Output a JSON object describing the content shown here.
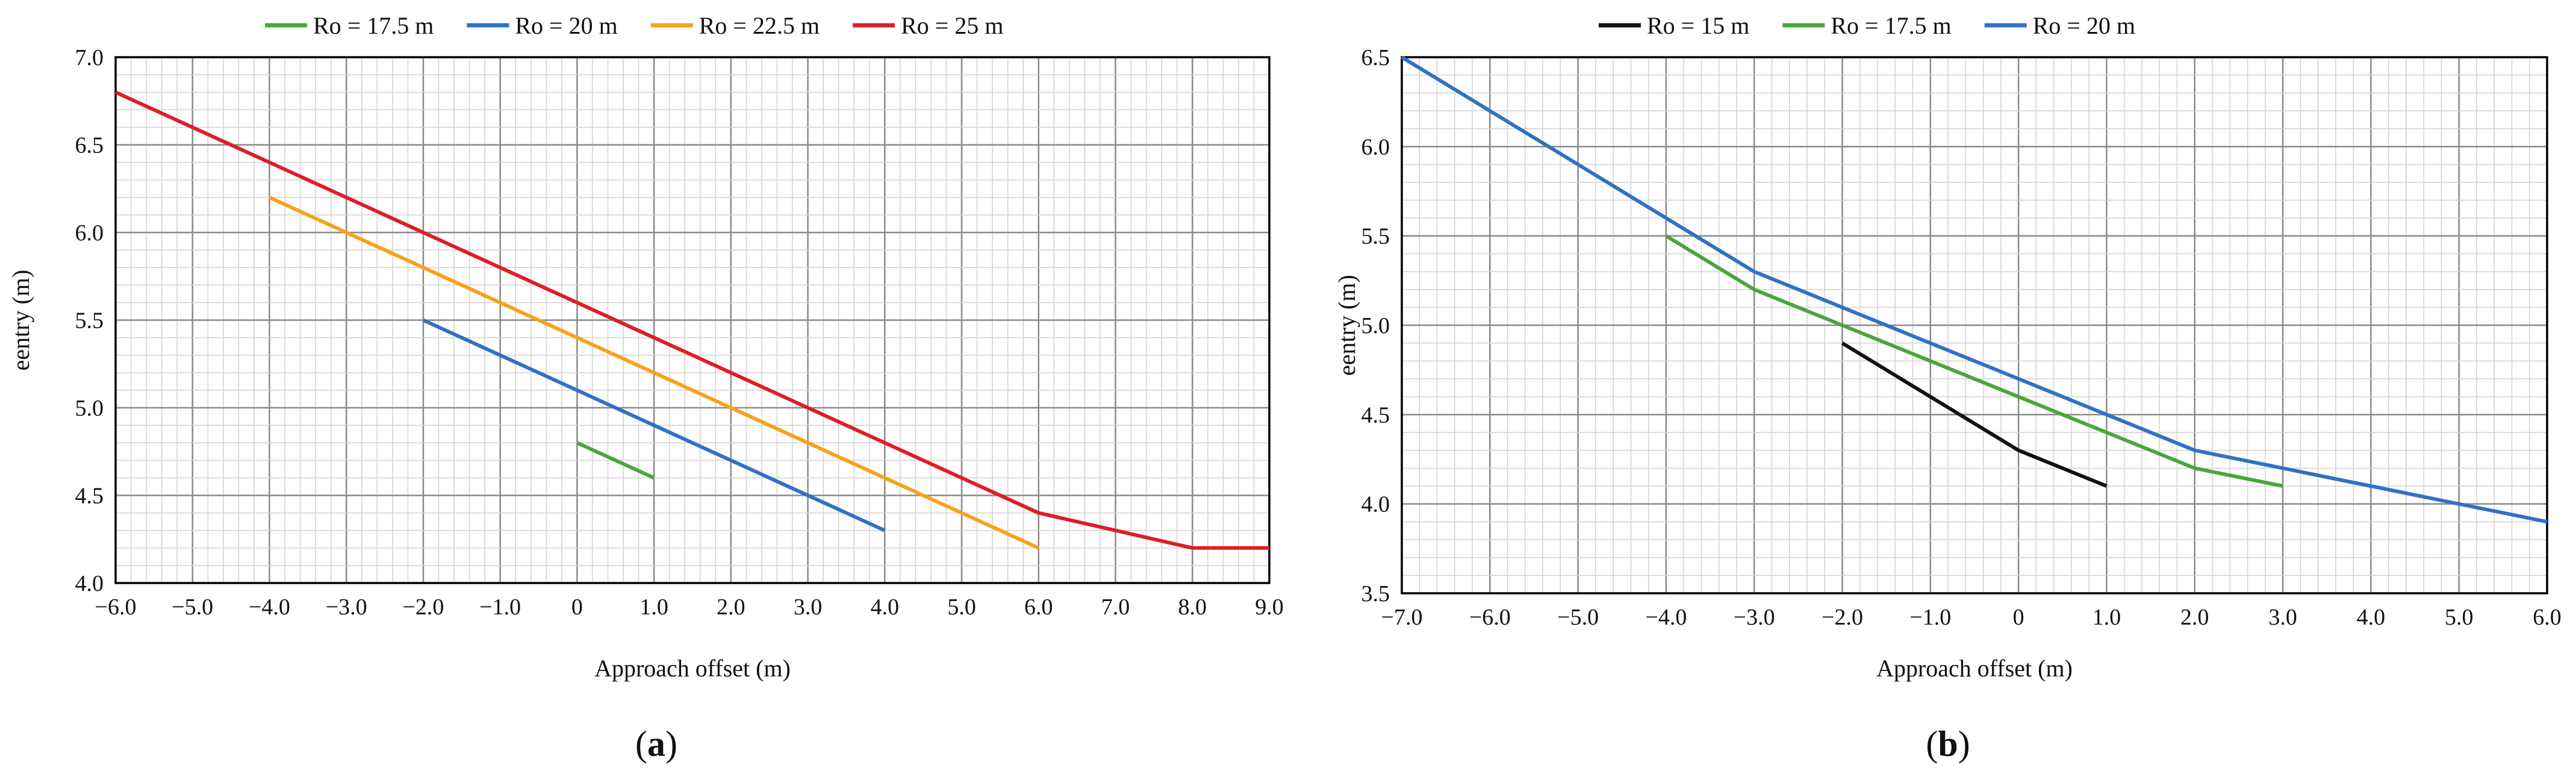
{
  "chart_data": [
    {
      "type": "line",
      "panel_label": "a",
      "xlabel": "Approach offset (m)",
      "ylabel": "eentry (m)",
      "xlim": [
        -6,
        9
      ],
      "ylim": [
        4,
        7
      ],
      "x_major_step": 1,
      "y_major_step": 0.5,
      "x_minor_per_major": 5,
      "y_minor_per_major": 5,
      "x_ticks": [
        "−6.0",
        "−5.0",
        "−4.0",
        "−3.0",
        "−2.0",
        "−1.0",
        "0",
        "1.0",
        "2.0",
        "3.0",
        "4.0",
        "5.0",
        "6.0",
        "7.0",
        "8.0",
        "9.0"
      ],
      "y_ticks": [
        "4.0",
        "4.5",
        "5.0",
        "5.5",
        "6.0",
        "6.5",
        "7.0"
      ],
      "grid": true,
      "legend_position": "top",
      "series": [
        {
          "name": "Ro = 17.5 m",
          "color": "#4aa63c",
          "x": [
            0,
            1
          ],
          "y": [
            4.8,
            4.6
          ]
        },
        {
          "name": "Ro = 20 m",
          "color": "#2f72c4",
          "x": [
            -2,
            4
          ],
          "y": [
            5.5,
            4.3
          ]
        },
        {
          "name": "Ro = 22.5 m",
          "color": "#f6a21e",
          "x": [
            -4,
            6
          ],
          "y": [
            6.2,
            4.2
          ]
        },
        {
          "name": "Ro = 25 m",
          "color": "#dd1e26",
          "x": [
            -6,
            6,
            8,
            9
          ],
          "y": [
            6.8,
            4.4,
            4.2,
            4.2
          ]
        }
      ]
    },
    {
      "type": "line",
      "panel_label": "b",
      "xlabel": "Approach offset (m)",
      "ylabel": "eentry (m)",
      "xlim": [
        -7,
        6
      ],
      "ylim": [
        3.5,
        6.5
      ],
      "x_major_step": 1,
      "y_major_step": 0.5,
      "x_minor_per_major": 5,
      "y_minor_per_major": 5,
      "x_ticks": [
        "−7.0",
        "−6.0",
        "−5.0",
        "−4.0",
        "−3.0",
        "−2.0",
        "−1.0",
        "0",
        "1.0",
        "2.0",
        "3.0",
        "4.0",
        "5.0",
        "6.0"
      ],
      "y_ticks": [
        "3.5",
        "4.0",
        "4.5",
        "5.0",
        "5.5",
        "6.0",
        "6.5"
      ],
      "grid": true,
      "legend_position": "top",
      "series": [
        {
          "name": "Ro = 15 m",
          "color": "#111111",
          "x": [
            -2,
            -1,
            0,
            1
          ],
          "y": [
            4.9,
            4.6,
            4.3,
            4.1
          ]
        },
        {
          "name": "Ro = 17.5 m",
          "color": "#4aa63c",
          "x": [
            -4,
            -3,
            -2,
            -1,
            0,
            1,
            2,
            3
          ],
          "y": [
            5.5,
            5.2,
            5.0,
            4.8,
            4.6,
            4.4,
            4.2,
            4.1
          ]
        },
        {
          "name": "Ro = 20 m",
          "color": "#2f72c4",
          "x": [
            -7,
            -3,
            -2,
            -1,
            0,
            1,
            2,
            3,
            4,
            5,
            6
          ],
          "y": [
            6.5,
            5.3,
            5.1,
            4.9,
            4.7,
            4.5,
            4.3,
            4.2,
            4.1,
            4.0,
            3.9
          ]
        }
      ]
    }
  ]
}
